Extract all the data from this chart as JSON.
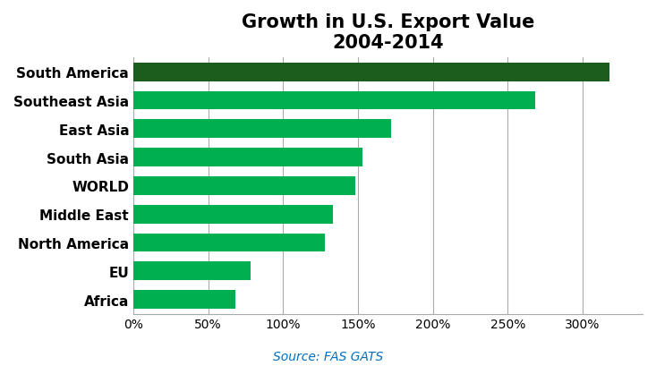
{
  "title_line1": "Growth in U.S. Export Value",
  "title_line2": "2004-2014",
  "source_text": "Source: FAS GATS",
  "source_color": "#0070C0",
  "categories": [
    "Africa",
    "EU",
    "North America",
    "Middle East",
    "WORLD",
    "South Asia",
    "East Asia",
    "Southeast Asia",
    "South America"
  ],
  "values": [
    68,
    78,
    128,
    133,
    148,
    153,
    172,
    268,
    318
  ],
  "bar_colors": [
    "#00B050",
    "#00B050",
    "#00B050",
    "#00B050",
    "#00B050",
    "#00B050",
    "#00B050",
    "#00B050",
    "#1C5C1C"
  ],
  "xlim": [
    0,
    340
  ],
  "xticks": [
    0,
    50,
    100,
    150,
    200,
    250,
    300
  ],
  "background_color": "#ffffff",
  "bar_height": 0.65,
  "title_fontsize": 15,
  "label_fontsize": 11,
  "tick_fontsize": 10,
  "source_fontsize": 10
}
